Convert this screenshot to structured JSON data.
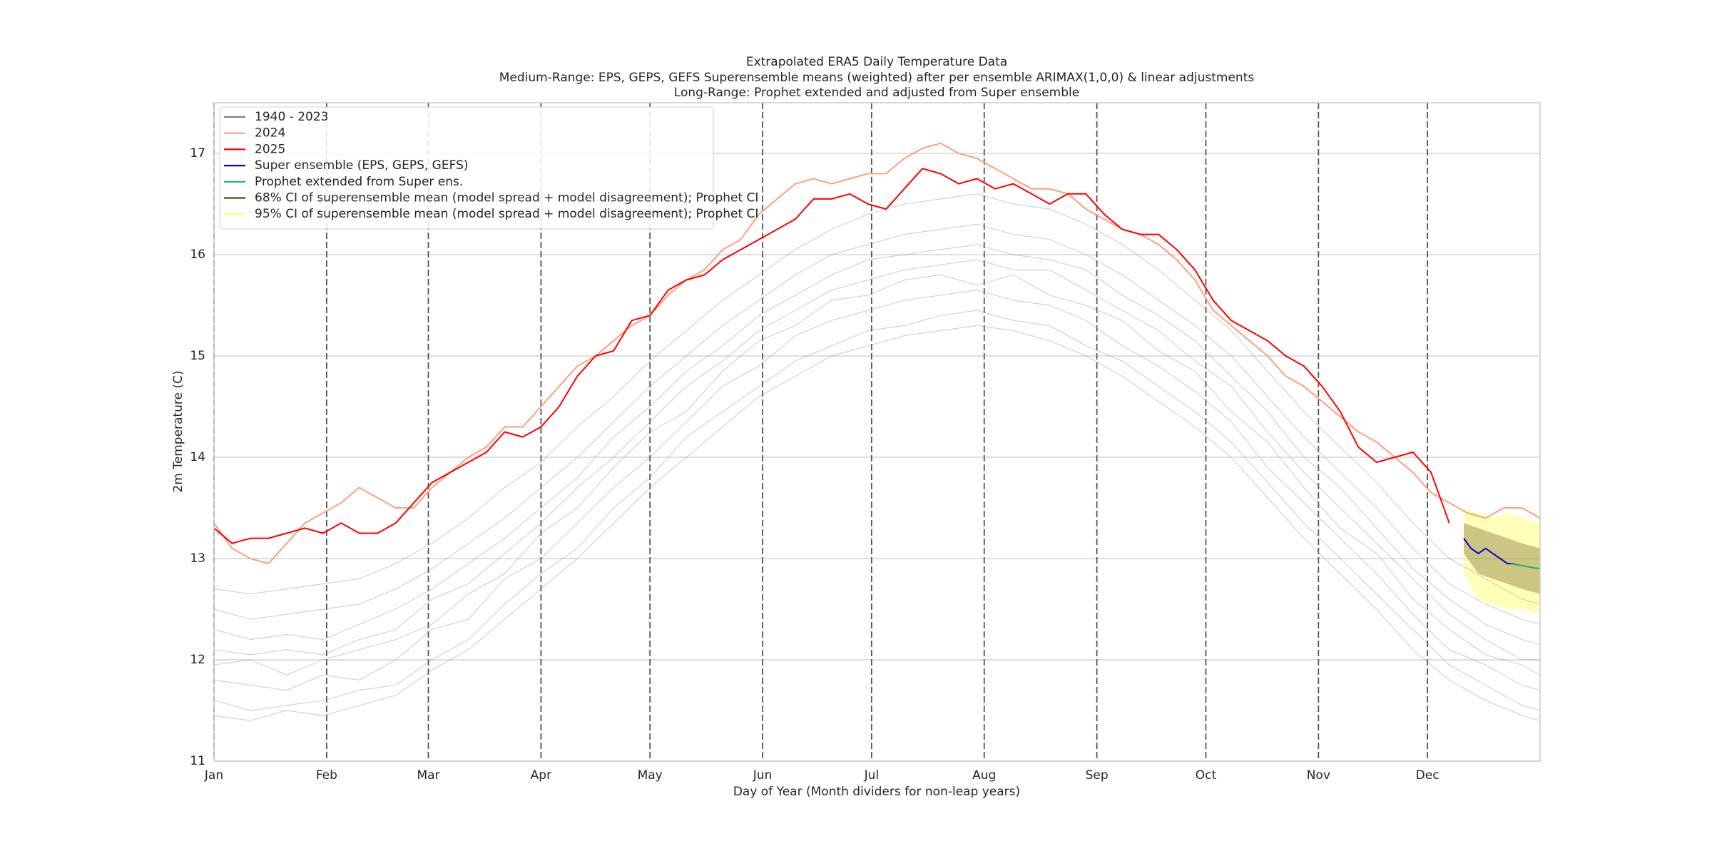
{
  "chart_data": {
    "type": "line",
    "title": "Extrapolated ERA5 Daily Temperature Data",
    "subtitle": [
      "Medium-Range: EPS, GEPS, GEFS Superensemble means (weighted) after per ensemble ARIMAX(1,0,0) & linear adjustments",
      "Long-Range: Prophet extended and adjusted from Super ensemble"
    ],
    "x_label": "Day of Year (Month dividers for non-leap years)",
    "y_label": "2m Temperature (C)",
    "xlim": [
      0,
      365
    ],
    "ylim": [
      11,
      17.5
    ],
    "xticks": [
      {
        "value": 0,
        "label": "Jan"
      },
      {
        "value": 31,
        "label": "Feb"
      },
      {
        "value": 59,
        "label": "Mar"
      },
      {
        "value": 90,
        "label": "Apr"
      },
      {
        "value": 120,
        "label": "May"
      },
      {
        "value": 151,
        "label": "Jun"
      },
      {
        "value": 181,
        "label": "Jul"
      },
      {
        "value": 212,
        "label": "Aug"
      },
      {
        "value": 243,
        "label": "Sep"
      },
      {
        "value": 273,
        "label": "Oct"
      },
      {
        "value": 304,
        "label": "Nov"
      },
      {
        "value": 334,
        "label": "Dec"
      }
    ],
    "yticks": [
      11,
      12,
      13,
      14,
      15,
      16,
      17
    ],
    "grid": true,
    "legend": "upper left",
    "series": [
      {
        "name": "1940 - 2023",
        "color": "#808080",
        "x": [
          0,
          10,
          20,
          30,
          40,
          50,
          60,
          70,
          80,
          90,
          100,
          110,
          120,
          130,
          140,
          150,
          160,
          170,
          180,
          190,
          200,
          210,
          220,
          230,
          240,
          250,
          260,
          270,
          280,
          290,
          300,
          310,
          320,
          330,
          340,
          350,
          360,
          365
        ],
        "values": [
          [
            11.6,
            11.5,
            11.55,
            11.6,
            11.7,
            11.75,
            12.0,
            12.2,
            12.55,
            12.85,
            13.1,
            13.5,
            13.8,
            14.2,
            14.45,
            14.7,
            14.95,
            15.1,
            15.25,
            15.3,
            15.4,
            15.45,
            15.35,
            15.3,
            15.1,
            14.95,
            14.7,
            14.45,
            14.15,
            13.75,
            13.35,
            13.0,
            12.65,
            12.3,
            11.95,
            11.75,
            11.55,
            11.5
          ],
          [
            11.8,
            11.75,
            11.7,
            11.85,
            11.8,
            12.0,
            12.3,
            12.4,
            12.8,
            13.0,
            13.35,
            13.7,
            14.0,
            14.35,
            14.7,
            14.9,
            15.2,
            15.35,
            15.45,
            15.55,
            15.6,
            15.65,
            15.55,
            15.5,
            15.35,
            15.1,
            14.9,
            14.65,
            14.35,
            13.9,
            13.55,
            13.2,
            12.85,
            12.45,
            12.1,
            11.95,
            11.75,
            11.7
          ],
          [
            11.95,
            12.0,
            11.85,
            12.0,
            12.1,
            12.2,
            12.35,
            12.65,
            12.85,
            13.25,
            13.5,
            13.9,
            14.25,
            14.45,
            14.85,
            15.15,
            15.3,
            15.55,
            15.6,
            15.75,
            15.8,
            15.7,
            15.8,
            15.6,
            15.5,
            15.35,
            15.05,
            14.85,
            14.45,
            14.15,
            13.7,
            13.3,
            13.05,
            12.6,
            12.3,
            12.05,
            11.95,
            11.85
          ],
          [
            12.1,
            12.05,
            12.1,
            12.05,
            12.2,
            12.3,
            12.6,
            12.75,
            13.05,
            13.35,
            13.7,
            14.0,
            14.35,
            14.7,
            14.95,
            15.25,
            15.45,
            15.65,
            15.75,
            15.85,
            15.9,
            15.95,
            15.85,
            15.85,
            15.65,
            15.45,
            15.25,
            14.95,
            14.7,
            14.25,
            13.85,
            13.5,
            13.15,
            12.8,
            12.45,
            12.2,
            12.0,
            12.0
          ],
          [
            12.3,
            12.2,
            12.25,
            12.2,
            12.35,
            12.5,
            12.7,
            12.95,
            13.2,
            13.5,
            13.8,
            14.2,
            14.5,
            14.85,
            15.1,
            15.4,
            15.6,
            15.8,
            15.95,
            16.0,
            16.05,
            16.1,
            16.0,
            15.95,
            15.85,
            15.6,
            15.4,
            15.15,
            14.8,
            14.45,
            14.0,
            13.7,
            13.3,
            12.9,
            12.6,
            12.35,
            12.2,
            12.15
          ],
          [
            12.5,
            12.4,
            12.45,
            12.5,
            12.55,
            12.7,
            12.9,
            13.15,
            13.4,
            13.7,
            14.0,
            14.35,
            14.7,
            15.0,
            15.3,
            15.55,
            15.8,
            16.0,
            16.1,
            16.2,
            16.25,
            16.3,
            16.2,
            16.15,
            16.0,
            15.8,
            15.55,
            15.3,
            15.0,
            14.6,
            14.2,
            13.85,
            13.5,
            13.1,
            12.75,
            12.55,
            12.4,
            12.35
          ],
          [
            11.45,
            11.4,
            11.5,
            11.45,
            11.55,
            11.65,
            11.9,
            12.1,
            12.4,
            12.7,
            13.0,
            13.35,
            13.7,
            14.0,
            14.3,
            14.6,
            14.8,
            15.0,
            15.1,
            15.2,
            15.25,
            15.3,
            15.25,
            15.15,
            15.0,
            14.8,
            14.55,
            14.3,
            14.0,
            13.6,
            13.2,
            12.85,
            12.5,
            12.1,
            11.8,
            11.6,
            11.45,
            11.4
          ],
          [
            12.7,
            12.65,
            12.7,
            12.75,
            12.8,
            12.95,
            13.15,
            13.4,
            13.7,
            13.95,
            14.3,
            14.6,
            14.95,
            15.25,
            15.55,
            15.8,
            16.05,
            16.25,
            16.4,
            16.5,
            16.55,
            16.6,
            16.5,
            16.45,
            16.3,
            16.1,
            15.85,
            15.55,
            15.25,
            14.85,
            14.45,
            14.1,
            13.75,
            13.35,
            13.0,
            12.8,
            12.6,
            12.55
          ]
        ]
      },
      {
        "name": "2024",
        "color": "#ffa07a",
        "x": [
          0,
          5,
          10,
          15,
          20,
          25,
          30,
          35,
          40,
          45,
          50,
          55,
          60,
          65,
          70,
          75,
          80,
          85,
          90,
          95,
          100,
          105,
          110,
          115,
          120,
          125,
          130,
          135,
          140,
          145,
          150,
          155,
          160,
          165,
          170,
          175,
          180,
          185,
          190,
          195,
          200,
          205,
          210,
          215,
          220,
          225,
          230,
          235,
          240,
          245,
          250,
          255,
          260,
          265,
          270,
          275,
          280,
          285,
          290,
          295,
          300,
          305,
          310,
          315,
          320,
          325,
          330,
          335,
          340,
          345,
          350,
          355,
          360,
          365
        ],
        "values": [
          13.35,
          13.1,
          13.0,
          12.95,
          13.15,
          13.35,
          13.45,
          13.55,
          13.7,
          13.6,
          13.5,
          13.5,
          13.7,
          13.85,
          14.0,
          14.1,
          14.3,
          14.3,
          14.5,
          14.7,
          14.9,
          15.0,
          15.15,
          15.3,
          15.4,
          15.6,
          15.75,
          15.85,
          16.05,
          16.15,
          16.4,
          16.55,
          16.7,
          16.75,
          16.7,
          16.75,
          16.8,
          16.8,
          16.95,
          17.05,
          17.1,
          17.0,
          16.95,
          16.85,
          16.75,
          16.65,
          16.65,
          16.6,
          16.45,
          16.35,
          16.25,
          16.2,
          16.1,
          15.95,
          15.75,
          15.45,
          15.3,
          15.15,
          15.0,
          14.8,
          14.7,
          14.55,
          14.4,
          14.25,
          14.15,
          14.0,
          13.85,
          13.65,
          13.55,
          13.45,
          13.4,
          13.5,
          13.5,
          13.4
        ]
      },
      {
        "name": "2025",
        "color": "#ff0000",
        "x": [
          0,
          5,
          10,
          15,
          20,
          25,
          30,
          35,
          40,
          45,
          50,
          55,
          60,
          65,
          70,
          75,
          80,
          85,
          90,
          95,
          100,
          105,
          110,
          115,
          120,
          125,
          130,
          135,
          140,
          145,
          150,
          155,
          160,
          165,
          170,
          175,
          180,
          185,
          190,
          195,
          200,
          205,
          210,
          215,
          220,
          225,
          230,
          235,
          240,
          245,
          250,
          255,
          260,
          265,
          270,
          275,
          280,
          285,
          290,
          295,
          300,
          305,
          310,
          315,
          320,
          325,
          330,
          335,
          340,
          345,
          350,
          355,
          360,
          365
        ],
        "values": [
          13.3,
          13.15,
          13.2,
          13.2,
          13.25,
          13.3,
          13.25,
          13.35,
          13.25,
          13.25,
          13.35,
          13.55,
          13.75,
          13.85,
          13.95,
          14.05,
          14.25,
          14.2,
          14.3,
          14.5,
          14.8,
          15.0,
          15.05,
          15.35,
          15.4,
          15.65,
          15.75,
          15.8,
          15.95,
          16.05,
          16.15,
          16.25,
          16.35,
          16.55,
          16.55,
          16.6,
          16.5,
          16.45,
          16.65,
          16.85,
          16.8,
          16.7,
          16.75,
          16.65,
          16.7,
          16.6,
          16.5,
          16.6,
          16.6,
          16.4,
          16.25,
          16.2,
          16.2,
          16.05,
          15.85,
          15.55,
          15.35,
          15.25,
          15.15,
          15.0,
          14.9,
          14.7,
          14.45,
          14.1,
          13.95,
          14.0,
          14.05,
          13.85,
          13.35,
          null,
          null,
          null,
          null,
          null
        ]
      },
      {
        "name": "Super ensemble (EPS, GEPS, GEFS)",
        "color": "#0000dd",
        "x": [
          344,
          346,
          348,
          350,
          352,
          354,
          356,
          358
        ],
        "values": [
          13.2,
          13.1,
          13.05,
          13.1,
          13.05,
          13.0,
          12.95,
          12.95
        ]
      },
      {
        "name": "Prophet extended from Super ens.",
        "color": "#1aaf6c",
        "x": [
          357,
          360,
          363,
          365
        ],
        "values": [
          12.95,
          12.93,
          12.91,
          12.9
        ]
      },
      {
        "name": "68% CI of superensemble mean (model spread + model disagreement); Prophet CI",
        "color": "#5a4000",
        "x": [
          344,
          348,
          352,
          356,
          360,
          365
        ],
        "lower": [
          13.05,
          12.85,
          12.8,
          12.75,
          12.7,
          12.65
        ],
        "upper": [
          13.35,
          13.3,
          13.25,
          13.2,
          13.15,
          13.1
        ]
      },
      {
        "name": "95% CI of superensemble mean (model spread + model disagreement); Prophet CI",
        "color": "#ffff66",
        "x": [
          344,
          348,
          352,
          356,
          360,
          365
        ],
        "lower": [
          12.85,
          12.6,
          12.55,
          12.5,
          12.5,
          12.45
        ],
        "upper": [
          13.5,
          13.45,
          13.4,
          13.45,
          13.4,
          13.35
        ]
      }
    ]
  }
}
